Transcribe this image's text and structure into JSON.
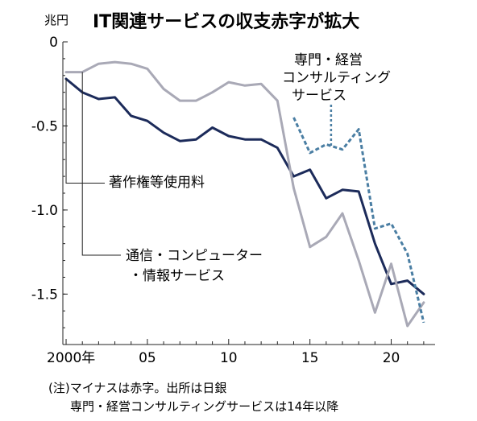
{
  "chart_data": {
    "type": "line",
    "title": "IT関連サービスの収支赤字が拡大",
    "unit": "兆円",
    "x": [
      2000,
      2001,
      2002,
      2003,
      2004,
      2005,
      2006,
      2007,
      2008,
      2009,
      2010,
      2011,
      2012,
      2013,
      2014,
      2015,
      2016,
      2017,
      2018,
      2019,
      2020,
      2021,
      2022
    ],
    "x_tick_labels": [
      "2000年",
      "05",
      "10",
      "15",
      "20"
    ],
    "x_tick_values": [
      2000,
      2005,
      2010,
      2015,
      2020
    ],
    "y_tick_labels": [
      "0",
      "-0.5",
      "-1.0",
      "-1.5"
    ],
    "y_tick_values": [
      0,
      -0.5,
      -1.0,
      -1.5
    ],
    "ylim": [
      -1.8,
      0
    ],
    "xlim": [
      1999.8,
      2022.7
    ],
    "series": [
      {
        "name": "著作権等使用料",
        "color": "#1c2b5a",
        "style": "solid",
        "values": [
          -0.22,
          -0.3,
          -0.34,
          -0.33,
          -0.44,
          -0.47,
          -0.54,
          -0.59,
          -0.58,
          -0.51,
          -0.56,
          -0.58,
          -0.58,
          -0.63,
          -0.8,
          -0.76,
          -0.93,
          -0.88,
          -0.89,
          -1.2,
          -1.44,
          -1.42,
          -1.5
        ]
      },
      {
        "name": "通信・コンピューター・情報サービス",
        "label_lines": [
          "通信・コンピューター",
          "・情報サービス"
        ],
        "color": "#a9a9b6",
        "style": "solid",
        "values": [
          -0.18,
          -0.18,
          -0.13,
          -0.12,
          -0.13,
          -0.16,
          -0.28,
          -0.35,
          -0.35,
          -0.3,
          -0.24,
          -0.26,
          -0.25,
          -0.35,
          -0.87,
          -1.22,
          -1.16,
          -1.02,
          -1.3,
          -1.61,
          -1.32,
          -1.69,
          -1.55
        ]
      },
      {
        "name": "専門・経営コンサルティングサービス",
        "label_lines": [
          "専門・経営",
          "コンサルティング",
          "サービス"
        ],
        "color": "#4a7ea3",
        "style": "dashed",
        "x_start_index": 14,
        "values": [
          null,
          null,
          null,
          null,
          null,
          null,
          null,
          null,
          null,
          null,
          null,
          null,
          null,
          null,
          -0.45,
          -0.66,
          -0.61,
          -0.64,
          -0.52,
          -1.11,
          -1.08,
          -1.26,
          -1.67
        ]
      }
    ],
    "notes": [
      "(注)マイナスは赤字。出所は日銀",
      "専門・経営コンサルティングサービスは14年以降"
    ]
  }
}
